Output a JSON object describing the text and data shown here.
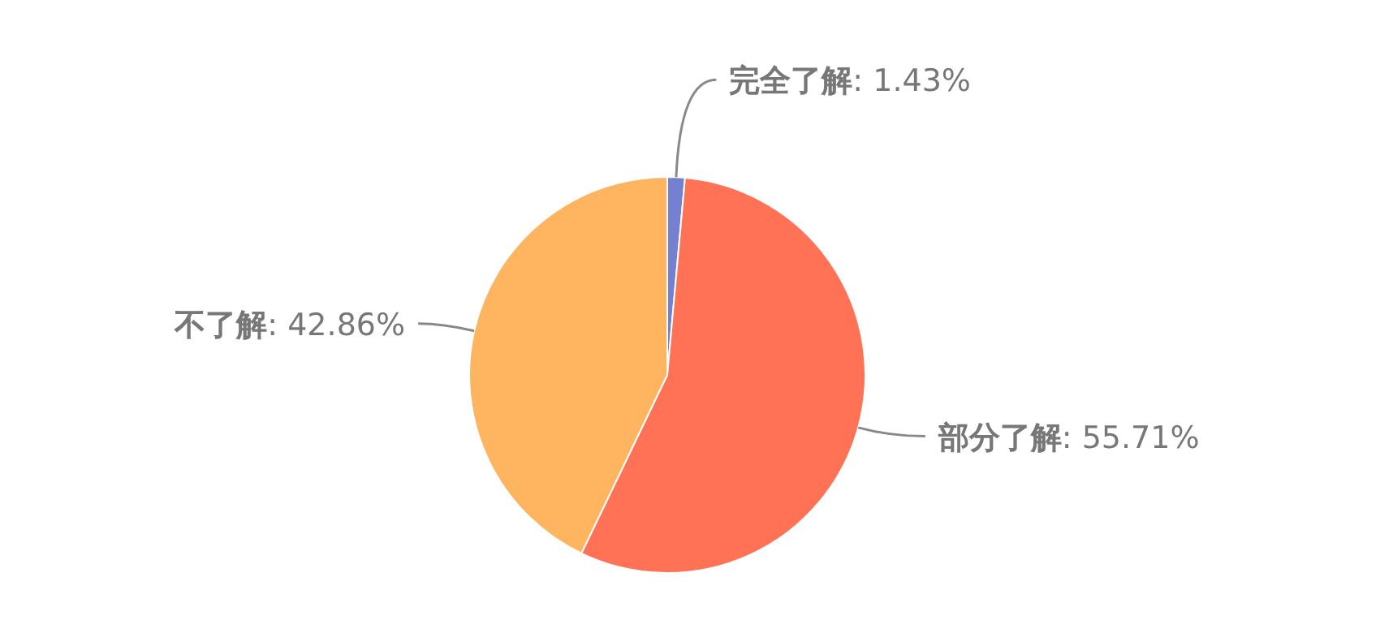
{
  "chart_data": {
    "type": "pie",
    "categories": [
      "完全了解",
      "部分了解",
      "不了解"
    ],
    "values": [
      1.43,
      55.71,
      42.86
    ],
    "value_labels": [
      ": 1.43%",
      ": 55.71%",
      ": 42.86%"
    ],
    "colors": [
      "#7580d0",
      "#ff7256",
      "#ffb560"
    ]
  }
}
